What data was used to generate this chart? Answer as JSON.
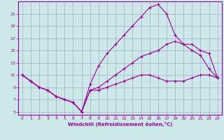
{
  "xlabel": "Windchill (Refroidissement éolien,°C)",
  "bg_color": "#cce8e8",
  "grid_color": "#aaaacc",
  "line_color": "#990099",
  "xlim": [
    -0.5,
    23.5
  ],
  "ylim": [
    4.5,
    23
  ],
  "yticks": [
    5,
    7,
    9,
    11,
    13,
    15,
    17,
    19,
    21
  ],
  "xticks": [
    0,
    1,
    2,
    3,
    4,
    5,
    6,
    7,
    8,
    9,
    10,
    11,
    12,
    13,
    14,
    15,
    16,
    17,
    18,
    19,
    20,
    21,
    22,
    23
  ],
  "series1_x": [
    0,
    1,
    2,
    3,
    4,
    5,
    6,
    7,
    8,
    9,
    10,
    11,
    12,
    13,
    14,
    15,
    16,
    17,
    18,
    19,
    20,
    21,
    22,
    23
  ],
  "series1_y": [
    11,
    10,
    9,
    8.5,
    7.5,
    7,
    6.5,
    5,
    8.5,
    8.5,
    9,
    9.5,
    10,
    10.5,
    11,
    11,
    10.5,
    10,
    10,
    10,
    10.5,
    11,
    11,
    10.5
  ],
  "series2_x": [
    0,
    1,
    2,
    3,
    4,
    5,
    6,
    7,
    8,
    9,
    10,
    11,
    12,
    13,
    14,
    15,
    16,
    17,
    18,
    19,
    20,
    21,
    22,
    23
  ],
  "series2_y": [
    11,
    10,
    9,
    8.5,
    7.5,
    7,
    6.5,
    5,
    9.5,
    12.5,
    14.5,
    16,
    17.5,
    19,
    20.5,
    22,
    22.5,
    21,
    17.5,
    16,
    15,
    14.2,
    12,
    10.5
  ],
  "series3_x": [
    0,
    1,
    2,
    3,
    4,
    5,
    6,
    7,
    8,
    9,
    10,
    11,
    12,
    13,
    14,
    15,
    16,
    17,
    18,
    19,
    20,
    21,
    22,
    23
  ],
  "series3_y": [
    11,
    10,
    9,
    8.5,
    7.5,
    7,
    6.5,
    5,
    8.5,
    9,
    10,
    11,
    12,
    13,
    14,
    14.5,
    15,
    16,
    16.5,
    16,
    16,
    15,
    14.5,
    10.5
  ]
}
